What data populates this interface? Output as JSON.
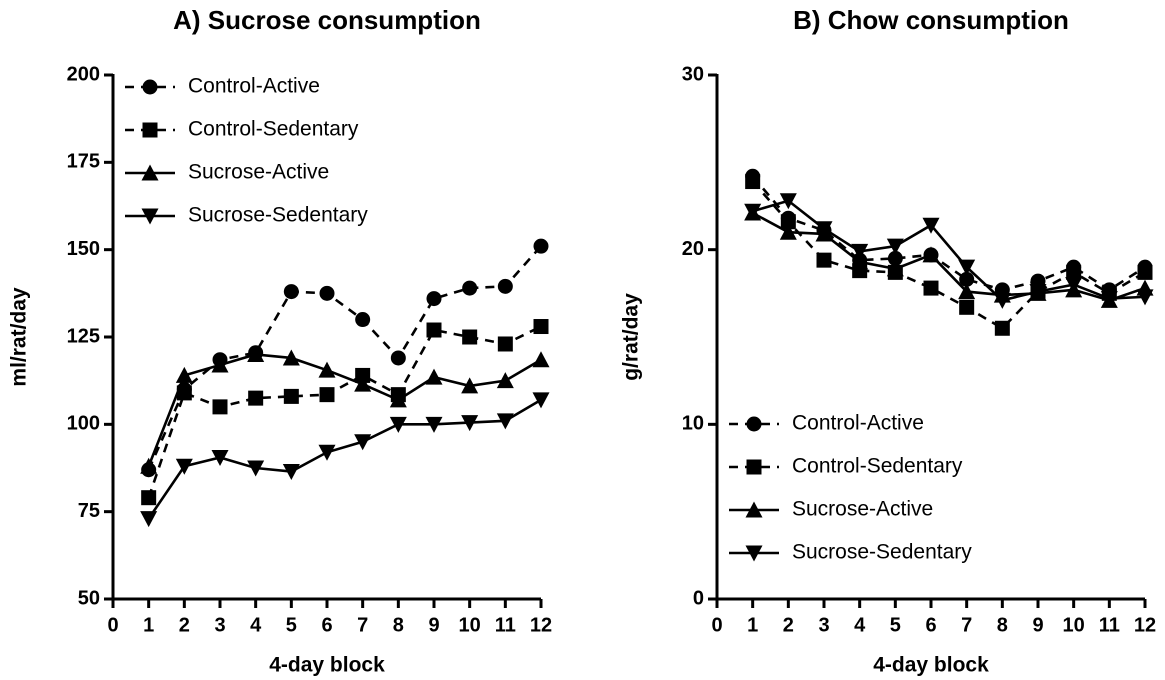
{
  "chart_data": [
    {
      "type": "line",
      "title": "A) Sucrose consumption",
      "xlabel": "4-day block",
      "ylabel": "ml/rat/day",
      "x": [
        1,
        2,
        3,
        4,
        5,
        6,
        7,
        8,
        9,
        10,
        11,
        12
      ],
      "xlim": [
        0,
        12
      ],
      "xticks": [
        0,
        1,
        2,
        3,
        4,
        5,
        6,
        7,
        8,
        9,
        10,
        11,
        12
      ],
      "ylim": [
        50,
        200
      ],
      "yticks": [
        50,
        75,
        100,
        125,
        150,
        175,
        200
      ],
      "legend": "upper left",
      "series": [
        {
          "name": "Control-Active",
          "color": "#000000",
          "marker": "circle",
          "linestyle": "dashed",
          "values": [
            87,
            110,
            118.5,
            120.5,
            138,
            137.5,
            130,
            119,
            136,
            139,
            139.5,
            151
          ]
        },
        {
          "name": "Control-Sedentary",
          "color": "#000000",
          "marker": "square",
          "linestyle": "dashed",
          "values": [
            79,
            109,
            105,
            107.5,
            108,
            108.5,
            114,
            108.5,
            127,
            125,
            123,
            128
          ]
        },
        {
          "name": "Sucrose-Active",
          "color": "#000000",
          "marker": "triangle",
          "linestyle": "solid",
          "values": [
            88,
            114,
            117,
            120,
            119,
            115.5,
            111.5,
            107,
            113.5,
            111,
            112.5,
            118.5
          ]
        },
        {
          "name": "Sucrose-Sedentary",
          "color": "#000000",
          "marker": "triangle-down",
          "linestyle": "solid",
          "values": [
            73,
            88,
            90.5,
            87.5,
            86.5,
            92,
            95,
            100,
            100,
            100.5,
            101,
            107
          ]
        }
      ]
    },
    {
      "type": "line",
      "title": "B) Chow consumption",
      "xlabel": "4-day block",
      "ylabel": "g/rat/day",
      "x": [
        1,
        2,
        3,
        4,
        5,
        6,
        7,
        8,
        9,
        10,
        11,
        12
      ],
      "xlim": [
        0,
        12
      ],
      "xticks": [
        0,
        1,
        2,
        3,
        4,
        5,
        6,
        7,
        8,
        9,
        10,
        11,
        12
      ],
      "ylim": [
        0,
        30
      ],
      "yticks": [
        0,
        10,
        20,
        30
      ],
      "legend": "lower left",
      "series": [
        {
          "name": "Control-Active",
          "color": "#000000",
          "marker": "circle",
          "linestyle": "dashed",
          "values": [
            24.2,
            21.8,
            21.1,
            19.4,
            19.5,
            19.7,
            18.3,
            17.7,
            18.2,
            19,
            17.7,
            19
          ]
        },
        {
          "name": "Control-Sedentary",
          "color": "#000000",
          "marker": "square",
          "linestyle": "dashed",
          "values": [
            23.9,
            21.6,
            19.4,
            18.8,
            18.7,
            17.8,
            16.7,
            15.5,
            17.6,
            18.7,
            17.5,
            18.7
          ]
        },
        {
          "name": "Sucrose-Active",
          "color": "#000000",
          "marker": "triangle",
          "linestyle": "solid",
          "values": [
            22.1,
            21,
            20.9,
            19.3,
            18.9,
            19.7,
            17.6,
            17.4,
            17.5,
            17.7,
            17.1,
            17.8
          ]
        },
        {
          "name": "Sucrose-Sedentary",
          "color": "#000000",
          "marker": "triangle-down",
          "linestyle": "solid",
          "values": [
            22.2,
            22.8,
            21.2,
            19.9,
            20.2,
            21.4,
            19,
            17.1,
            17.6,
            18,
            17.2,
            17.3
          ]
        }
      ]
    }
  ]
}
